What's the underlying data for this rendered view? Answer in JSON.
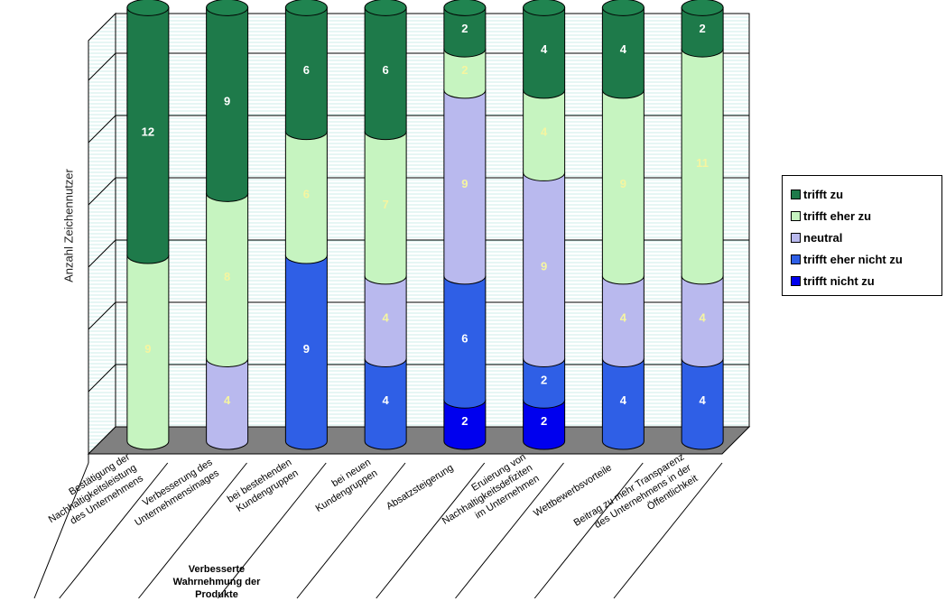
{
  "chart_data": {
    "type": "bar",
    "stacked": true,
    "style": "3d-cylinder",
    "ylabel": "Anzahl Zeichennutzer",
    "ylim": [
      0,
      21
    ],
    "grid": true,
    "legend_position": "right",
    "categories": [
      "Bestätigung der Nachhaltigkeitsleistung des Unternehmens",
      "Verbesserung des Unternehmensimages",
      "bei bestehenden Kundengruppen",
      "bei neuen Kundengruppen",
      "Absatzsteigerung",
      "Eruierung von Nachhaltigkeitsdefiziten im Unternehmen",
      "Wettbewerbsvorteile",
      "Beitrag zu mehr Transparenz des Unternehmens in der Öffentlichkeit"
    ],
    "category_lines": [
      [
        "Bestätigung der",
        "Nachhaltigkeitsleistung",
        "des Unternehmens"
      ],
      [
        "Verbesserung des",
        "Unternehmensimages"
      ],
      [
        "bei bestehenden",
        "Kundengruppen"
      ],
      [
        "bei neuen",
        "Kundengruppen"
      ],
      [
        "Absatzsteigerung"
      ],
      [
        "Eruierung von",
        "Nachhaltigkeitsdefiziten",
        "im Unternehmen"
      ],
      [
        "Wettbewerbsvorteile"
      ],
      [
        "Beitrag zu mehr Transparenz",
        "des Unternehmens in der",
        "Öffentlichkeit"
      ]
    ],
    "group_label": "Verbesserte Wahrnehmung der Produkte",
    "series": [
      {
        "name": "trifft nicht zu",
        "color": "#0000ee",
        "values": [
          0,
          0,
          0,
          0,
          2,
          2,
          0,
          0
        ]
      },
      {
        "name": "trifft eher nicht zu",
        "color": "#2f5fe6",
        "values": [
          0,
          0,
          9,
          4,
          6,
          2,
          4,
          4
        ]
      },
      {
        "name": "neutral",
        "color": "#b9b9ee",
        "values": [
          0,
          4,
          0,
          4,
          9,
          9,
          4,
          4
        ]
      },
      {
        "name": "trifft eher zu",
        "color": "#c6f4c0",
        "values": [
          9,
          8,
          6,
          7,
          2,
          4,
          9,
          11
        ]
      },
      {
        "name": "trifft zu",
        "color": "#1e7a4a",
        "values": [
          12,
          9,
          6,
          6,
          2,
          4,
          4,
          2
        ]
      }
    ],
    "legend_order": [
      "trifft zu",
      "trifft eher zu",
      "neutral",
      "trifft eher nicht zu",
      "trifft nicht zu"
    ]
  }
}
